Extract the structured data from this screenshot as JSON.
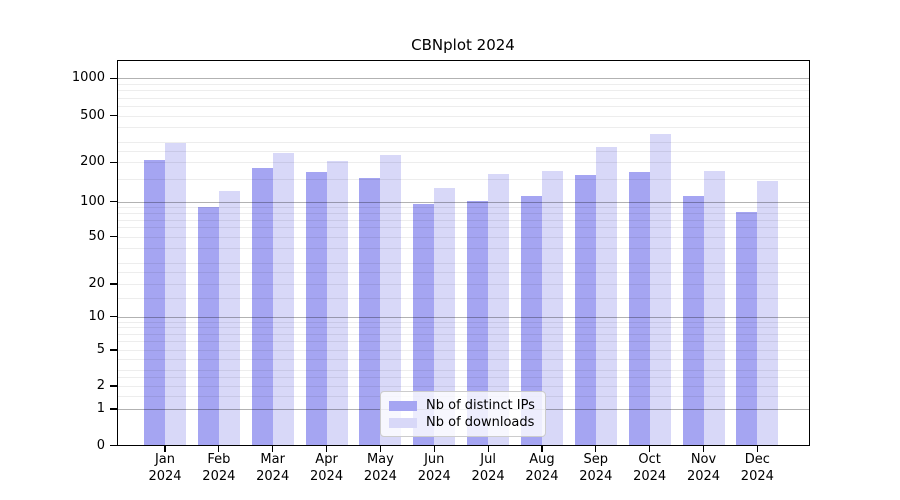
{
  "chart_data": {
    "type": "bar",
    "title": "CBNplot 2024",
    "categories": [
      "Jan",
      "Feb",
      "Mar",
      "Apr",
      "May",
      "Jun",
      "Jul",
      "Aug",
      "Sep",
      "Oct",
      "Nov",
      "Dec"
    ],
    "year_label": "2024",
    "series": [
      {
        "name": "Nb of distinct IPs",
        "color": "#a5a5f2",
        "values": [
          210,
          90,
          181,
          170,
          151,
          95,
          102,
          110,
          161,
          170,
          110,
          82
        ]
      },
      {
        "name": "Nb of downloads",
        "color": "#d8d8f8",
        "values": [
          291,
          121,
          240,
          205,
          230,
          127,
          163,
          172,
          271,
          352,
          171,
          144
        ]
      }
    ],
    "yticks": [
      1000,
      500,
      200,
      100,
      50,
      20,
      10,
      5,
      2,
      1,
      0
    ],
    "yscale": "symlog",
    "ylim": [
      0,
      1400
    ],
    "grid": true,
    "legend_position": "lower center inside plot"
  }
}
